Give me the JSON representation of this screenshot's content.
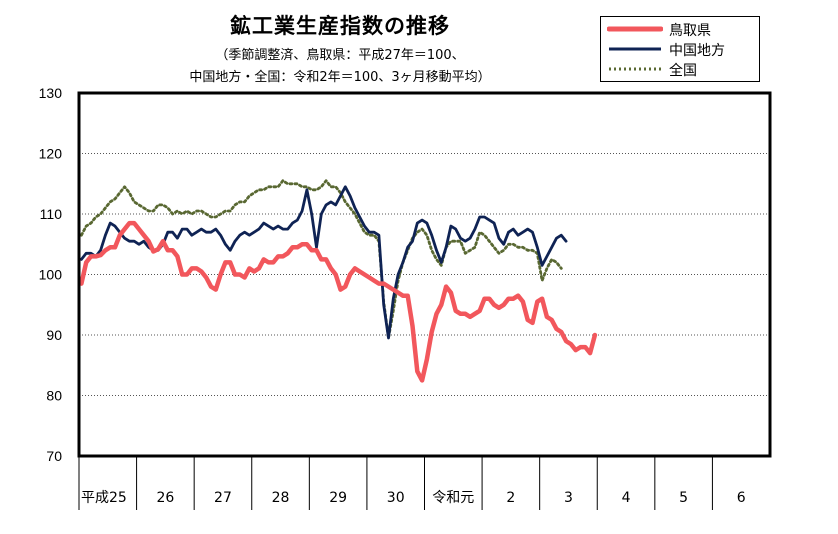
{
  "chart_data": {
    "type": "line",
    "title": "鉱工業生産指数の推移",
    "subtitle_lines": [
      "（季節調整済、鳥取県：平成27年＝100、",
      "中国地方・全国：令和2年＝100、3ヶ月移動平均）"
    ],
    "xlabel": "",
    "ylabel": "",
    "ylim": [
      70,
      130
    ],
    "yticks": [
      70,
      80,
      90,
      100,
      110,
      120,
      130
    ],
    "grid": "horizontal-dotted",
    "legend_position": "top-right",
    "x_unit": "month",
    "x_start": "平成25年1月",
    "year_labels": [
      "平成25",
      "26",
      "27",
      "28",
      "29",
      "30",
      "令和元",
      "2",
      "3",
      "4",
      "5",
      "6"
    ],
    "series": [
      {
        "name": "鳥取県",
        "color": "#f2575c",
        "style": "solid-thick",
        "values": [
          98.5,
          102.0,
          103.0,
          103.0,
          103.2,
          104.0,
          104.5,
          104.5,
          106.5,
          107.5,
          108.5,
          108.5,
          107.5,
          106.5,
          105.5,
          103.8,
          104.2,
          105.5,
          104.0,
          104.0,
          103.0,
          100.0,
          100.0,
          101.0,
          101.0,
          100.5,
          99.5,
          98.0,
          97.5,
          100.0,
          102.0,
          102.0,
          100.0,
          100.0,
          99.5,
          101.0,
          100.5,
          101.0,
          102.5,
          102.0,
          102.0,
          103.0,
          103.0,
          103.5,
          104.5,
          104.5,
          105.0,
          105.0,
          104.0,
          104.0,
          102.5,
          102.5,
          101.0,
          100.0,
          97.5,
          98.0,
          100.0,
          101.0,
          100.5,
          100.0,
          99.5,
          99.0,
          98.5,
          98.5,
          98.0,
          97.5,
          97.0,
          96.5,
          96.5,
          91.5,
          84.0,
          82.5,
          86.0,
          90.5,
          93.5,
          95.0,
          98.0,
          97.0,
          94.0,
          93.5,
          93.5,
          93.0,
          93.5,
          94.0,
          96.0,
          96.0,
          95.0,
          94.5,
          95.0,
          96.0,
          96.0,
          96.5,
          95.5,
          92.5,
          92.0,
          95.5,
          96.0,
          93.0,
          92.5,
          91.0,
          90.5,
          89.0,
          88.5,
          87.5,
          88.0,
          88.0,
          87.0,
          90.0
        ]
      },
      {
        "name": "中国地方",
        "color": "#0f2354",
        "style": "solid",
        "values": [
          102.5,
          103.5,
          103.5,
          103.0,
          104.0,
          106.5,
          108.5,
          108.0,
          107.0,
          106.0,
          105.5,
          105.5,
          105.0,
          105.5,
          104.5,
          104.0,
          104.0,
          105.0,
          107.0,
          107.0,
          106.0,
          107.5,
          107.5,
          106.5,
          107.0,
          107.5,
          107.0,
          107.0,
          107.5,
          106.5,
          105.0,
          104.0,
          105.5,
          106.5,
          107.0,
          106.5,
          107.0,
          107.5,
          108.5,
          108.0,
          107.5,
          108.0,
          107.5,
          107.5,
          108.5,
          109.0,
          110.5,
          114.0,
          110.0,
          104.5,
          110.0,
          111.5,
          112.0,
          111.5,
          113.0,
          114.5,
          113.0,
          111.0,
          109.5,
          108.0,
          107.0,
          107.0,
          106.5,
          95.0,
          89.5,
          96.0,
          100.0,
          102.0,
          104.5,
          105.5,
          108.5,
          109.0,
          108.5,
          106.5,
          104.0,
          102.0,
          104.5,
          108.0,
          107.5,
          106.0,
          105.5,
          106.0,
          107.5,
          109.5,
          109.5,
          109.0,
          108.5,
          106.0,
          105.0,
          107.0,
          107.5,
          106.5,
          107.0,
          107.5,
          107.0,
          104.5,
          101.5,
          103.0,
          104.5,
          106.0,
          106.5,
          105.5
        ]
      },
      {
        "name": "全国",
        "color": "#596832",
        "style": "dotted",
        "values": [
          106.5,
          108.0,
          108.5,
          109.5,
          110.0,
          111.0,
          112.0,
          112.5,
          113.5,
          114.5,
          113.5,
          112.0,
          111.5,
          111.0,
          110.5,
          110.5,
          111.5,
          111.5,
          111.0,
          110.0,
          110.5,
          110.0,
          110.5,
          110.0,
          110.5,
          110.5,
          110.0,
          109.5,
          109.5,
          110.0,
          110.5,
          110.5,
          111.5,
          112.0,
          112.0,
          113.0,
          113.5,
          114.0,
          114.0,
          114.5,
          114.5,
          114.5,
          115.5,
          115.0,
          115.0,
          115.0,
          114.5,
          114.5,
          114.0,
          114.0,
          114.5,
          115.5,
          114.5,
          114.5,
          113.5,
          112.0,
          111.0,
          110.0,
          108.5,
          107.0,
          106.5,
          106.5,
          105.5,
          95.5,
          89.5,
          94.0,
          99.0,
          102.0,
          104.0,
          106.0,
          107.0,
          107.5,
          106.5,
          104.0,
          102.5,
          101.5,
          104.5,
          105.5,
          105.5,
          105.5,
          103.5,
          104.0,
          104.5,
          107.0,
          106.5,
          105.5,
          104.5,
          103.5,
          104.0,
          105.0,
          105.0,
          104.5,
          104.5,
          104.0,
          104.0,
          103.5,
          99.0,
          101.0,
          102.5,
          102.0,
          101.0
        ]
      }
    ]
  }
}
